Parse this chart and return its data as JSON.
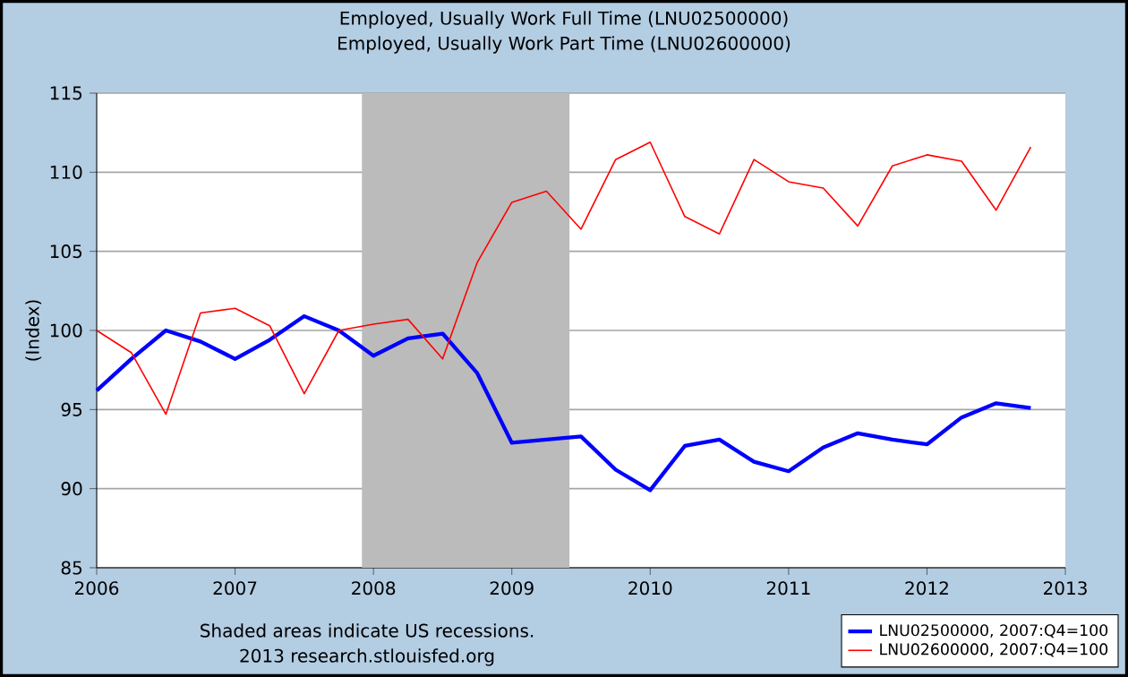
{
  "chart_data": {
    "type": "line",
    "title": "Employed, Usually Work Full Time (LNU02500000)",
    "subtitle": "Employed, Usually Work Part Time (LNU02600000)",
    "ylabel": "(Index)",
    "x": [
      "2006-01",
      "2006-04",
      "2006-07",
      "2006-10",
      "2007-01",
      "2007-04",
      "2007-07",
      "2007-10",
      "2008-01",
      "2008-04",
      "2008-07",
      "2008-10",
      "2009-01",
      "2009-04",
      "2009-07",
      "2009-10",
      "2010-01",
      "2010-04",
      "2010-07",
      "2010-10",
      "2011-01",
      "2011-04",
      "2011-07",
      "2011-10",
      "2012-01",
      "2012-04",
      "2012-07",
      "2012-10"
    ],
    "series": [
      {
        "name": "LNU02500000, 2007:Q4=100",
        "color": "#0000ff",
        "values": [
          96.2,
          98.2,
          100.0,
          99.3,
          98.2,
          99.4,
          100.9,
          100.0,
          98.4,
          99.5,
          99.8,
          97.3,
          92.9,
          93.1,
          93.3,
          91.2,
          89.9,
          92.7,
          93.1,
          91.7,
          91.1,
          92.6,
          93.5,
          93.1,
          92.8,
          94.5,
          95.4,
          95.1
        ]
      },
      {
        "name": "LNU02600000, 2007:Q4=100",
        "color": "#ff0000",
        "values": [
          100.0,
          98.6,
          94.7,
          101.1,
          101.4,
          100.3,
          96.0,
          100.0,
          100.4,
          100.7,
          98.2,
          104.3,
          108.1,
          108.8,
          106.4,
          110.8,
          111.9,
          107.2,
          106.1,
          110.8,
          109.4,
          109.0,
          106.6,
          110.4,
          111.1,
          110.7,
          107.6,
          111.6
        ]
      }
    ],
    "xlim": [
      "2006-01",
      "2013-01"
    ],
    "xticks": [
      "2006",
      "2007",
      "2008",
      "2009",
      "2010",
      "2011",
      "2012",
      "2013"
    ],
    "ylim": [
      85,
      115
    ],
    "yticks": [
      85,
      90,
      95,
      100,
      105,
      110,
      115
    ],
    "bands": [
      {
        "axis": "x",
        "from": "2007-12",
        "to": "2009-06",
        "color": "#bbbbbb"
      }
    ],
    "grid": "y",
    "legend": "bottom right",
    "annotations": [
      "Shaded areas indicate US recessions.",
      "2013 research.stlouisfed.org"
    ]
  }
}
